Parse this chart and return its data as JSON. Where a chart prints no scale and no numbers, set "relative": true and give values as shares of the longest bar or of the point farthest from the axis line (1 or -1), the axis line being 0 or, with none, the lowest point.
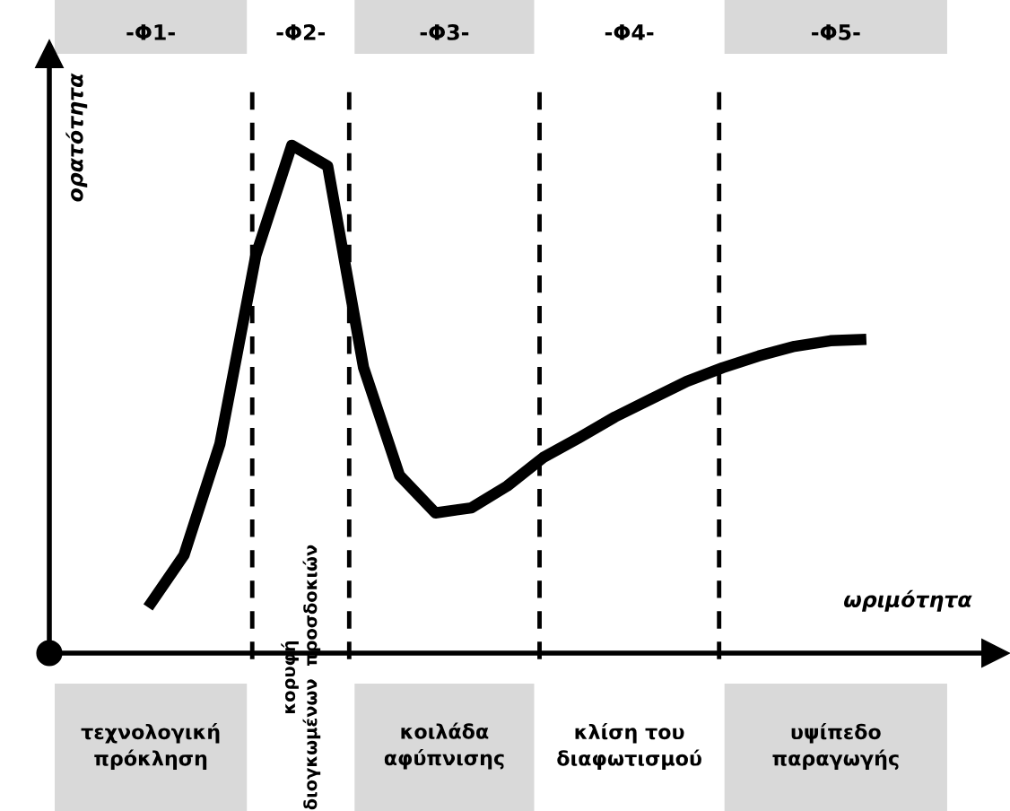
{
  "chart_data": {
    "type": "line",
    "relative": true,
    "xlabel": "ωριμότητα",
    "ylabel": "ορατότητα",
    "categories": [
      null,
      null,
      null,
      null,
      null,
      null,
      null,
      null,
      null,
      null,
      null,
      null,
      null,
      null,
      null,
      null,
      null,
      null,
      null,
      null,
      null
    ],
    "series": [
      {
        "color": "#000000",
        "values": [
          0.09,
          0.193,
          0.412,
          0.783,
          1.0,
          0.959,
          0.562,
          0.35,
          0.276,
          0.286,
          0.329,
          0.385,
          0.424,
          0.465,
          0.5,
          0.535,
          0.562,
          0.585,
          0.604,
          0.615,
          0.618
        ]
      }
    ],
    "annotations": [
      "-Φ1-",
      "-Φ2-",
      "-Φ3-",
      "-Φ4-",
      "-Φ5-",
      "τεχνολογική\nπρόκληση",
      "κορυφή\nδιογκωμένων  προσδοκιών",
      "κοιλάδα\nαφύπνισης",
      "κλίση του\nδιαφωτισμού",
      "υψίπεδο\nπαραγωγής"
    ],
    "marker": "none",
    "line_style": "solid",
    "grid": false
  }
}
